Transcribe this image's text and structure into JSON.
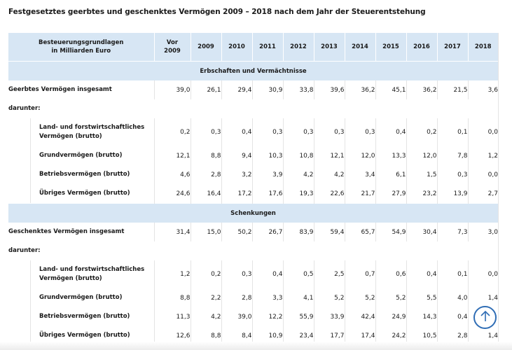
{
  "title": "Festgesetztes geerbtes und geschenktes Vermögen 2009 – 2018 nach dem Jahr der Steuerentstehung",
  "header": {
    "label_line1": "Besteuerungsgrundlagen",
    "label_line2": "in Milliarden Euro",
    "vor_line1": "Vor",
    "vor_line2": "2009",
    "years": [
      "2009",
      "2010",
      "2011",
      "2012",
      "2013",
      "2014",
      "2015",
      "2016",
      "2017",
      "2018"
    ]
  },
  "sections": [
    {
      "title": "Erbschaften und Vermächtnisse",
      "total": {
        "label": "Geerbtes Vermögen insgesamt",
        "values": [
          "39,0",
          "26,1",
          "29,4",
          "30,9",
          "33,8",
          "39,6",
          "36,2",
          "45,1",
          "36,2",
          "21,5",
          "3,6"
        ]
      },
      "darunter_label": "darunter:",
      "rows": [
        {
          "label_line1": "Land- und forstwirtschaftliches",
          "label_line2": "Vermögen (brutto)",
          "values": [
            "0,2",
            "0,3",
            "0,4",
            "0,3",
            "0,3",
            "0,3",
            "0,3",
            "0,4",
            "0,2",
            "0,1",
            "0,0"
          ]
        },
        {
          "label_line1": "Grundvermögen (brutto)",
          "values": [
            "12,1",
            "8,8",
            "9,4",
            "10,3",
            "10,8",
            "12,1",
            "12,0",
            "13,3",
            "12,0",
            "7,8",
            "1,2"
          ]
        },
        {
          "label_line1": "Betriebsvermögen (brutto)",
          "values": [
            "4,6",
            "2,8",
            "3,2",
            "3,9",
            "4,2",
            "4,2",
            "3,4",
            "6,1",
            "1,5",
            "0,3",
            "0,0"
          ]
        },
        {
          "label_line1": "Übriges Vermögen (brutto)",
          "values": [
            "24,6",
            "16,4",
            "17,2",
            "17,6",
            "19,3",
            "22,6",
            "21,7",
            "27,9",
            "23,2",
            "13,9",
            "2,7"
          ]
        }
      ]
    },
    {
      "title": "Schenkungen",
      "total": {
        "label": "Geschenktes Vermögen insgesamt",
        "values": [
          "31,4",
          "15,0",
          "50,2",
          "26,7",
          "83,9",
          "59,4",
          "65,7",
          "54,9",
          "30,4",
          "7,3",
          "3,0"
        ]
      },
      "darunter_label": "darunter:",
      "rows": [
        {
          "label_line1": "Land- und forstwirtschaftliches",
          "label_line2": "Vermögen (brutto)",
          "values": [
            "1,2",
            "0,2",
            "0,3",
            "0,4",
            "0,5",
            "2,5",
            "0,7",
            "0,6",
            "0,4",
            "0,1",
            "0,0"
          ]
        },
        {
          "label_line1": "Grundvermögen (brutto)",
          "values": [
            "8,8",
            "2,2",
            "2,8",
            "3,3",
            "4,1",
            "5,2",
            "5,2",
            "5,2",
            "5,5",
            "4,0",
            "1,4"
          ]
        },
        {
          "label_line1": "Betriebsvermögen (brutto)",
          "values": [
            "11,3",
            "4,2",
            "39,0",
            "12,2",
            "55,9",
            "33,9",
            "42,4",
            "24,9",
            "14,3",
            "0,4",
            ""
          ]
        },
        {
          "label_line1": "Übriges Vermögen (brutto)",
          "values": [
            "12,6",
            "8,8",
            "8,4",
            "10,9",
            "23,4",
            "17,7",
            "17,4",
            "24,2",
            "10,5",
            "2,8",
            "1,4"
          ]
        }
      ]
    }
  ],
  "icons": {
    "scroll_top": "arrow-up-icon"
  },
  "colors": {
    "header_bg": "#d7e6f4",
    "accent": "#2f6db5"
  }
}
